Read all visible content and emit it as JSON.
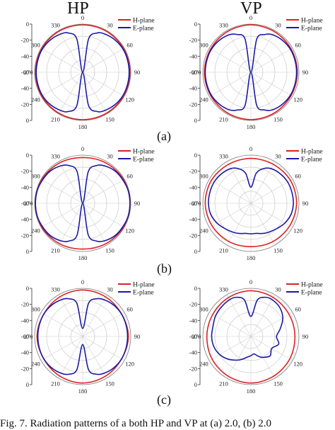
{
  "figure": {
    "column_titles": [
      "HP",
      "VP"
    ],
    "row_labels": [
      "(a)",
      "(b)",
      "(c)"
    ],
    "caption": "Fig. 7. Radiation patterns of a both HP and VP at (a) 2.0, (b) 2.0"
  },
  "chart_data": [
    {
      "type": "polar-line",
      "panel": "HP (a)",
      "theta_ticks": [
        "0",
        "30",
        "60",
        "90",
        "120",
        "150",
        "180",
        "210",
        "240",
        "270",
        "300",
        "330"
      ],
      "r_ticks": [
        "0",
        "-20",
        "-40",
        "-60",
        "-40",
        "-20",
        "0"
      ],
      "rlim": [
        -60,
        0
      ],
      "grid": true,
      "legend_position": "top-right",
      "series": [
        {
          "name": "H-plane",
          "color": "#e02020",
          "theta": [
            0,
            30,
            60,
            90,
            120,
            150,
            180,
            210,
            240,
            270,
            300,
            330
          ],
          "r": [
            -1,
            -1,
            -1,
            -1,
            -1,
            -1,
            -1,
            -1,
            -1,
            -1,
            -1,
            -1
          ]
        },
        {
          "name": "E-plane",
          "color": "#1a1aa6",
          "theta": [
            0,
            10,
            20,
            30,
            45,
            60,
            75,
            90,
            105,
            120,
            135,
            150,
            160,
            170,
            180,
            190,
            200,
            210,
            225,
            240,
            255,
            270,
            285,
            300,
            315,
            330,
            340,
            350
          ],
          "r": [
            -60,
            -18,
            -8,
            -5,
            -3,
            -2,
            -2,
            -2,
            -2,
            -2,
            -3,
            -5,
            -8,
            -18,
            -60,
            -18,
            -8,
            -5,
            -3,
            -2,
            -2,
            -2,
            -2,
            -2,
            -3,
            -5,
            -8,
            -18
          ]
        }
      ]
    },
    {
      "type": "polar-line",
      "panel": "VP (a)",
      "theta_ticks": [
        "0",
        "30",
        "60",
        "90",
        "120",
        "150",
        "180",
        "210",
        "240",
        "270",
        "300",
        "330"
      ],
      "r_ticks": [
        "0",
        "-20",
        "-40",
        "-60",
        "-40",
        "-20",
        "0"
      ],
      "rlim": [
        -60,
        0
      ],
      "grid": true,
      "legend_position": "top-right",
      "series": [
        {
          "name": "H-plane",
          "color": "#e02020",
          "theta": [
            0,
            30,
            60,
            90,
            120,
            150,
            180,
            210,
            240,
            270,
            300,
            330
          ],
          "r": [
            -1,
            -1.5,
            -2,
            -2,
            -2,
            -1.5,
            -1,
            -1.5,
            -2,
            -2,
            -2,
            -1.5
          ]
        },
        {
          "name": "E-plane",
          "color": "#1a1aa6",
          "theta": [
            0,
            10,
            20,
            30,
            45,
            60,
            75,
            90,
            105,
            120,
            135,
            150,
            160,
            170,
            180,
            190,
            200,
            210,
            225,
            240,
            255,
            270,
            285,
            300,
            315,
            330,
            340,
            350
          ],
          "r": [
            -60,
            -18,
            -10,
            -6,
            -4,
            -3,
            -3,
            -3,
            -3,
            -3,
            -4,
            -6,
            -10,
            -18,
            -60,
            -18,
            -10,
            -6,
            -4,
            -3,
            -3,
            -3,
            -3,
            -3,
            -4,
            -6,
            -10,
            -18
          ]
        }
      ]
    },
    {
      "type": "polar-line",
      "panel": "HP (b)",
      "theta_ticks": [
        "0",
        "30",
        "60",
        "90",
        "120",
        "150",
        "180",
        "210",
        "240",
        "270",
        "300",
        "330"
      ],
      "r_ticks": [
        "0",
        "-20",
        "-40",
        "-60",
        "-40",
        "-20",
        "0"
      ],
      "rlim": [
        -60,
        0
      ],
      "grid": true,
      "legend_position": "top-right",
      "series": [
        {
          "name": "H-plane",
          "color": "#e02020",
          "theta": [
            0,
            30,
            60,
            90,
            120,
            150,
            180,
            210,
            240,
            270,
            300,
            330
          ],
          "r": [
            -3,
            -2,
            -1,
            -1,
            -1,
            -2,
            -3,
            -2,
            -1,
            -1,
            -1,
            -2
          ]
        },
        {
          "name": "E-plane",
          "color": "#1a1aa6",
          "theta": [
            0,
            10,
            20,
            30,
            45,
            60,
            75,
            90,
            105,
            120,
            135,
            150,
            160,
            170,
            180,
            190,
            200,
            210,
            225,
            240,
            255,
            270,
            285,
            300,
            315,
            330,
            340,
            350
          ],
          "r": [
            -60,
            -20,
            -10,
            -6,
            -3,
            -2,
            -1,
            -1,
            -1,
            -2,
            -3,
            -6,
            -10,
            -20,
            -60,
            -20,
            -10,
            -6,
            -3,
            -2,
            -1,
            -1,
            -1,
            -2,
            -3,
            -6,
            -10,
            -20
          ]
        }
      ]
    },
    {
      "type": "polar-line",
      "panel": "VP (b)",
      "theta_ticks": [
        "0",
        "30",
        "60",
        "90",
        "120",
        "150",
        "180",
        "210",
        "240",
        "270",
        "300",
        "330"
      ],
      "r_ticks": [
        "0",
        "-20",
        "-40",
        "-60",
        "-40",
        "-20",
        "0"
      ],
      "rlim": [
        -60,
        0
      ],
      "grid": true,
      "legend_position": "top-right",
      "series": [
        {
          "name": "H-plane",
          "color": "#e02020",
          "theta": [
            0,
            30,
            60,
            90,
            120,
            150,
            180,
            210,
            240,
            270,
            300,
            330
          ],
          "r": [
            -4,
            -4,
            -3,
            -3,
            -4,
            -5,
            -6,
            -5,
            -4,
            -3,
            -3,
            -4
          ]
        },
        {
          "name": "E-plane",
          "color": "#1a1aa6",
          "theta": [
            0,
            10,
            20,
            30,
            45,
            60,
            75,
            90,
            105,
            120,
            135,
            150,
            160,
            170,
            180,
            190,
            200,
            210,
            225,
            240,
            255,
            270,
            285,
            300,
            315,
            330,
            340,
            350
          ],
          "r": [
            -40,
            -22,
            -14,
            -10,
            -8,
            -7,
            -7,
            -7,
            -8,
            -11,
            -15,
            -18,
            -20,
            -22,
            -22,
            -22,
            -20,
            -18,
            -15,
            -11,
            -8,
            -7,
            -7,
            -7,
            -8,
            -10,
            -14,
            -22
          ]
        }
      ]
    },
    {
      "type": "polar-line",
      "panel": "HP (c)",
      "theta_ticks": [
        "0",
        "30",
        "60",
        "90",
        "120",
        "150",
        "180",
        "210",
        "240",
        "270",
        "300",
        "330"
      ],
      "r_ticks": [
        "0",
        "-20",
        "-40",
        "-60",
        "-40",
        "-20",
        "0"
      ],
      "rlim": [
        -60,
        0
      ],
      "grid": true,
      "legend_position": "top-right",
      "series": [
        {
          "name": "H-plane",
          "color": "#e02020",
          "theta": [
            0,
            30,
            60,
            90,
            120,
            150,
            180,
            210,
            240,
            270,
            300,
            330
          ],
          "r": [
            -2,
            -3,
            -4,
            -3,
            -4,
            -3,
            -2,
            -3,
            -4,
            -3,
            -4,
            -3
          ]
        },
        {
          "name": "E-plane",
          "color": "#1a1aa6",
          "theta": [
            0,
            10,
            20,
            30,
            45,
            60,
            75,
            90,
            105,
            120,
            135,
            150,
            160,
            170,
            180,
            190,
            200,
            210,
            225,
            240,
            255,
            270,
            285,
            300,
            315,
            330,
            340,
            350
          ],
          "r": [
            -50,
            -18,
            -10,
            -7,
            -5,
            -4,
            -4,
            -4,
            -4,
            -4,
            -5,
            -7,
            -10,
            -18,
            -50,
            -18,
            -10,
            -7,
            -5,
            -4,
            -4,
            -4,
            -4,
            -4,
            -5,
            -7,
            -10,
            -18
          ]
        }
      ]
    },
    {
      "type": "polar-line",
      "panel": "VP (c)",
      "theta_ticks": [
        "0",
        "30",
        "60",
        "90",
        "120",
        "150",
        "180",
        "210",
        "240",
        "270",
        "300",
        "330"
      ],
      "r_ticks": [
        "0",
        "-20",
        "-40",
        "-60",
        "-40",
        "-20",
        "0"
      ],
      "rlim": [
        -60,
        0
      ],
      "grid": true,
      "legend_position": "top-right",
      "series": [
        {
          "name": "H-plane",
          "color": "#e02020",
          "theta": [
            0,
            30,
            60,
            90,
            120,
            150,
            180,
            210,
            240,
            270,
            300,
            330
          ],
          "r": [
            -3,
            -4,
            -5,
            -5,
            -4,
            -3,
            -2,
            -3,
            -4,
            -5,
            -5,
            -4
          ]
        },
        {
          "name": "E-plane",
          "color": "#1a1aa6",
          "theta": [
            0,
            10,
            20,
            30,
            45,
            60,
            75,
            90,
            105,
            120,
            135,
            150,
            160,
            170,
            180,
            190,
            200,
            210,
            225,
            240,
            255,
            270,
            285,
            300,
            315,
            330,
            340,
            350
          ],
          "r": [
            -35,
            -14,
            -8,
            -7,
            -9,
            -14,
            -22,
            -28,
            -24,
            -30,
            -26,
            -30,
            -34,
            -38,
            -36,
            -34,
            -30,
            -26,
            -20,
            -15,
            -12,
            -11,
            -11,
            -9,
            -8,
            -7,
            -8,
            -14
          ]
        }
      ]
    }
  ]
}
